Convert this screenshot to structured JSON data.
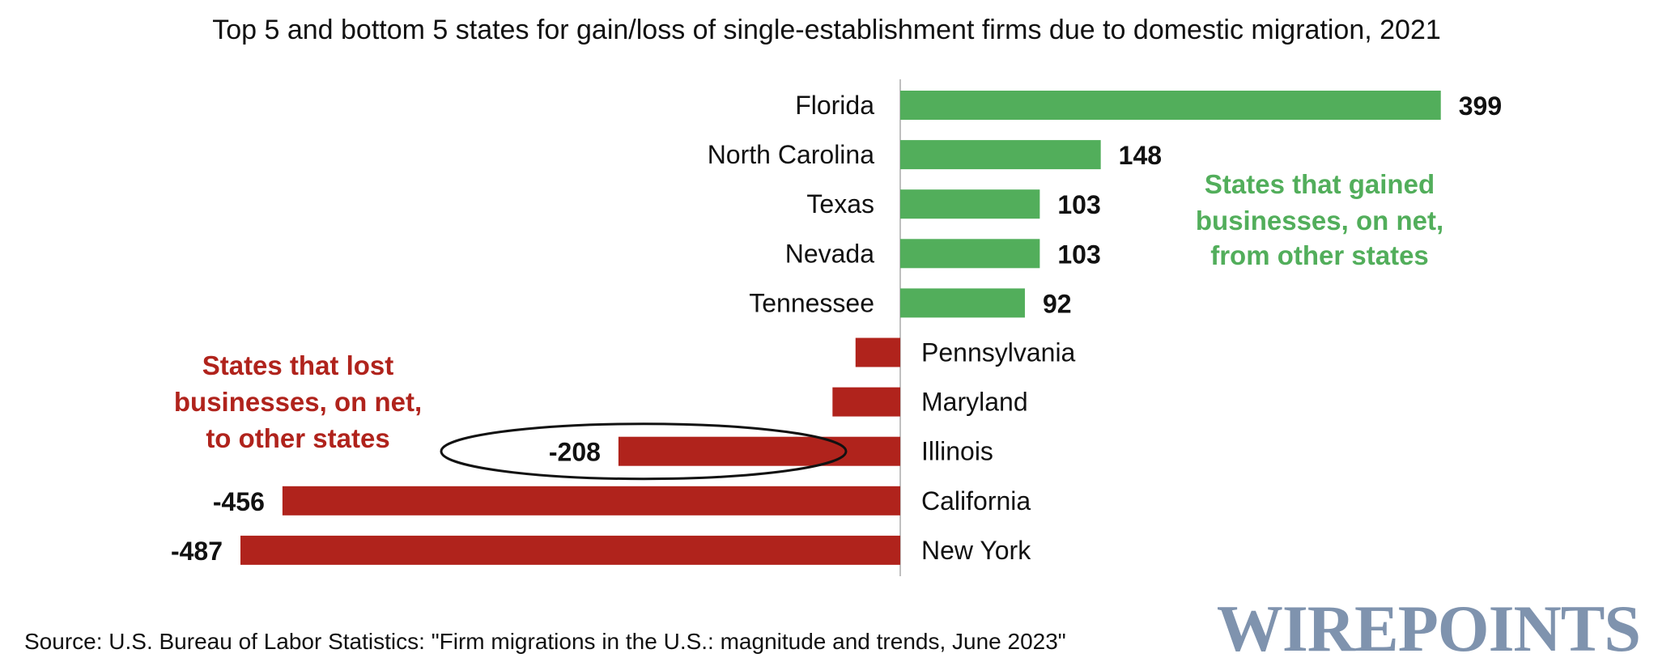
{
  "chart_data": {
    "type": "bar",
    "orientation": "horizontal",
    "title": "Top 5 and bottom 5 states for gain/loss of single-establishment firms due to domestic migration, 2021",
    "categories": [
      "Florida",
      "North Carolina",
      "Texas",
      "Nevada",
      "Tennessee",
      "Pennsylvania",
      "Maryland",
      "Illinois",
      "California",
      "New York"
    ],
    "values": [
      399,
      148,
      103,
      103,
      92,
      -33,
      -50,
      -208,
      -456,
      -487
    ],
    "value_labels": [
      "399",
      "148",
      "103",
      "103",
      "92",
      "",
      "",
      "-208",
      "-456",
      "-487"
    ],
    "xlim": [
      -487,
      399
    ],
    "grid": false,
    "legend": "none",
    "positive_color": "#52AE5B",
    "negative_color": "#B0231C",
    "highlighted_category": "Illinois",
    "annotations": {
      "gained": [
        "States that gained",
        "businesses, on net,",
        "from other states"
      ],
      "lost": [
        "States that lost",
        "businesses, on net,",
        "to other states"
      ]
    },
    "xlabel": "",
    "ylabel": ""
  },
  "source": "Source: U.S. Bureau of Labor Statistics: \"Firm migrations in the U.S.: magnitude and trends, June 2023\"",
  "logo": {
    "text": "WIREPOINTS",
    "color": "#7F93AE"
  },
  "colors": {
    "axis": "#aaaaaa",
    "text": "#111111"
  }
}
